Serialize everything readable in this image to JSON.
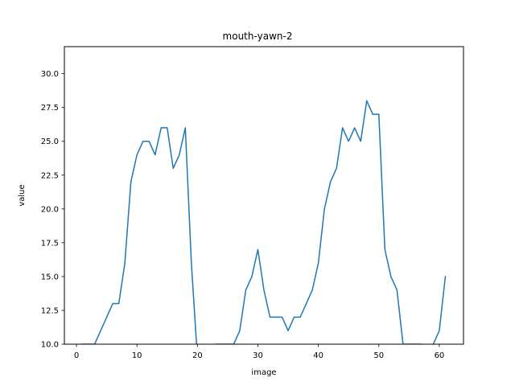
{
  "chart_data": {
    "type": "line",
    "title": "mouth-yawn-2",
    "xlabel": "image",
    "ylabel": "value",
    "xlim": [
      -2.0,
      64.0
    ],
    "ylim": [
      10.0,
      32.0
    ],
    "xticks": [
      0,
      10,
      20,
      30,
      40,
      50,
      60
    ],
    "yticks": [
      10.0,
      12.5,
      15.0,
      17.5,
      20.0,
      22.5,
      25.0,
      27.5,
      30.0
    ],
    "xtick_labels": [
      "0",
      "10",
      "20",
      "30",
      "40",
      "50",
      "60"
    ],
    "ytick_labels": [
      "10.0",
      "12.5",
      "15.0",
      "17.5",
      "20.0",
      "22.5",
      "25.0",
      "27.5",
      "30.0"
    ],
    "grid": false,
    "series": [
      {
        "color": "#1f77b4",
        "x": [
          1,
          2,
          3,
          4,
          5,
          6,
          7,
          8,
          9,
          10,
          11,
          12,
          13,
          14,
          15,
          16,
          17,
          18,
          19,
          20,
          21,
          22,
          23,
          24,
          25,
          26,
          27,
          28,
          29,
          30,
          31,
          32,
          33,
          34,
          35,
          36,
          37,
          38,
          39,
          40,
          41,
          42,
          43,
          44,
          45,
          46,
          47,
          48,
          49,
          50,
          51,
          52,
          53,
          54,
          55,
          56,
          57,
          58,
          59,
          60,
          61
        ],
        "y": [
          10,
          10,
          10,
          11,
          12,
          13,
          13,
          16,
          22,
          24,
          25,
          25,
          24,
          26,
          26,
          23,
          24,
          26,
          16,
          9,
          10,
          9,
          10,
          10,
          10,
          10,
          11,
          14,
          15,
          17,
          14,
          12,
          12,
          12,
          11,
          12,
          12,
          13,
          14,
          16,
          20,
          22,
          23,
          26,
          25,
          26,
          25,
          28,
          27,
          27,
          17,
          15,
          14,
          10,
          10,
          10,
          10,
          9,
          10,
          11,
          15
        ]
      }
    ]
  }
}
